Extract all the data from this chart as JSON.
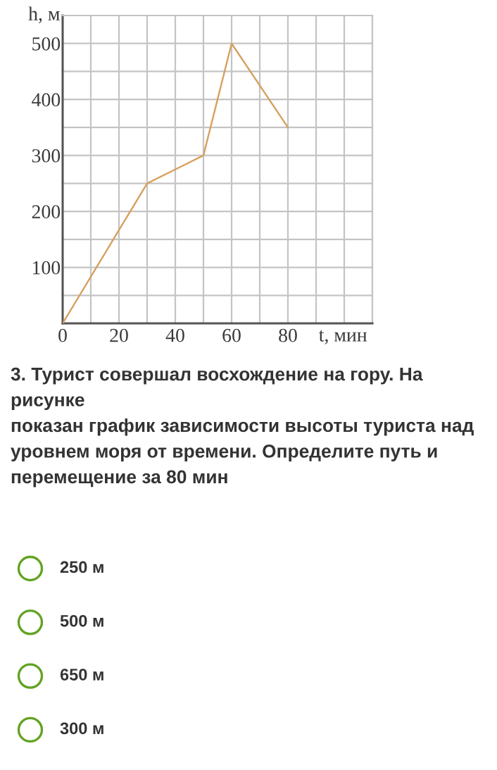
{
  "chart_data": {
    "type": "line",
    "xlabel": "t, мин",
    "ylabel": "h, м",
    "x": [
      0,
      30,
      50,
      60,
      80
    ],
    "series": [
      {
        "color": "#d6a05c",
        "values": [
          0,
          250,
          300,
          500,
          350
        ]
      }
    ],
    "xlim": [
      0,
      110
    ],
    "ylim": [
      0,
      550
    ],
    "xticks": [
      0,
      {
        "value": 10,
        "label": null
      },
      20,
      {
        "value": 30,
        "label": null
      },
      40,
      {
        "value": 50,
        "label": null
      },
      60,
      {
        "value": 70,
        "label": null
      },
      80,
      {
        "value": 90,
        "label": null
      },
      {
        "value": 100,
        "label": null
      },
      {
        "value": 110,
        "label": null
      }
    ],
    "yticks": [
      {
        "value": 0,
        "label": null
      },
      {
        "value": 50,
        "label": null
      },
      100,
      {
        "value": 150,
        "label": null
      },
      200,
      {
        "value": 250,
        "label": null
      },
      300,
      {
        "value": 350,
        "label": null
      },
      400,
      {
        "value": 450,
        "label": null
      },
      500,
      {
        "value": 550,
        "label": null
      }
    ],
    "grid": true,
    "line_style": "solid",
    "annotations": [
      "3. Турист совершал восхождение на гору. На\nрисунке\nпоказан график зависимости высоты туриста над\nуровнем моря от времени. Определите путь и\nперемещение за 80 мин",
      "250 м",
      "500 м",
      "650 м",
      "300 м"
    ]
  }
}
